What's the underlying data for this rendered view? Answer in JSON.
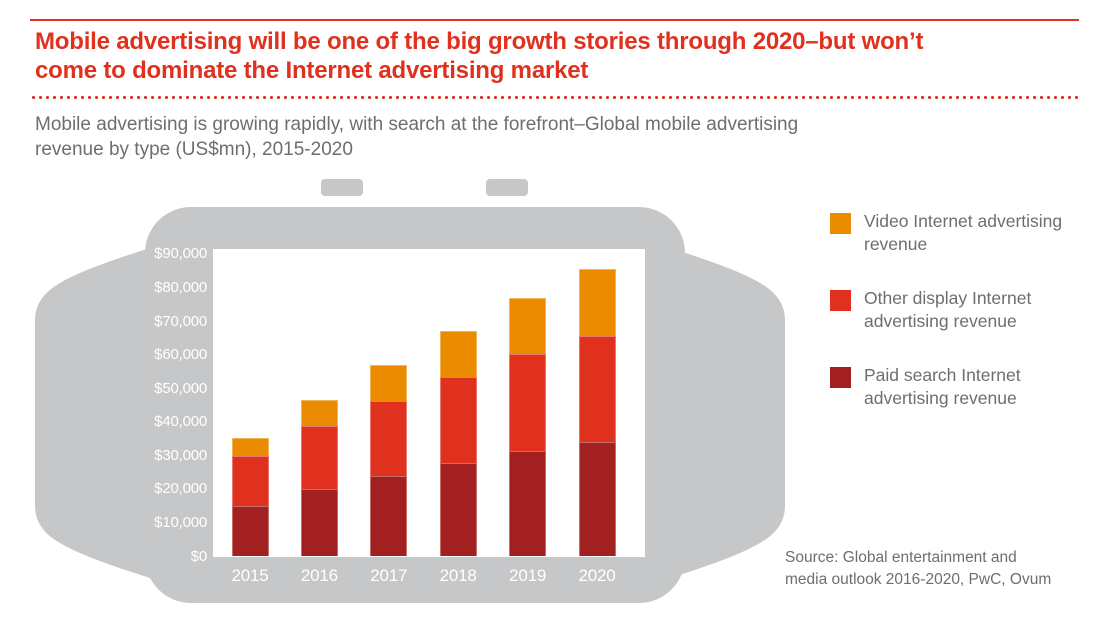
{
  "header": {
    "title_line1": "Mobile advertising will be one of the big growth stories through 2020–but won’t",
    "title_line2": "come to dominate the Internet advertising market",
    "subtitle_line1": "Mobile advertising is growing rapidly, with search at the forefront–Global mobile advertising",
    "subtitle_line2": "revenue by type (US$mn), 2015-2020"
  },
  "chart_data": {
    "type": "bar",
    "stacked": true,
    "title": "Global mobile advertising revenue by type (US$mn), 2015-2020",
    "units": "US$mn",
    "categories": [
      "2015",
      "2016",
      "2017",
      "2018",
      "2019",
      "2020"
    ],
    "series": [
      {
        "key": "paid-search",
        "name": "Paid search Internet advertising revenue",
        "color": "#A32020",
        "values": [
          15000,
          20000,
          23900,
          27800,
          31500,
          34200
        ]
      },
      {
        "key": "other-display",
        "name": "Other display Internet advertising revenue",
        "color": "#E0301E",
        "values": [
          14800,
          18900,
          22400,
          25600,
          28800,
          31500
        ]
      },
      {
        "key": "video",
        "name": "Video Internet advertising revenue",
        "color": "#EB8C00",
        "values": [
          5500,
          7600,
          10900,
          13800,
          16800,
          20000
        ]
      }
    ],
    "ylim": [
      0,
      90000
    ],
    "ytick_values": [
      0,
      10000,
      20000,
      30000,
      40000,
      50000,
      60000,
      70000,
      80000,
      90000
    ],
    "ytick_labels": [
      "$0",
      "$10,000",
      "$20,000",
      "$30,000",
      "$40,000",
      "$50,000",
      "$60,000",
      "$70,000",
      "$80,000",
      "$90,000"
    ],
    "grid": false,
    "legend_position": "right"
  },
  "legend": {
    "items": [
      {
        "label": "Video Internet advertising revenue",
        "color": "#EB8C00"
      },
      {
        "label": "Other display Internet advertising revenue",
        "color": "#E0301E"
      },
      {
        "label": "Paid search Internet advertising revenue",
        "color": "#A32020"
      }
    ]
  },
  "footer": {
    "source_line1": "Source: Global entertainment and",
    "source_line2": "media outlook 2016-2020, PwC, Ovum"
  },
  "colors": {
    "accent_red": "#E0301E",
    "dark_red": "#A32020",
    "orange": "#EB8C00",
    "watch_gray": "#C6C7C8",
    "text_gray": "#6D6E71"
  }
}
